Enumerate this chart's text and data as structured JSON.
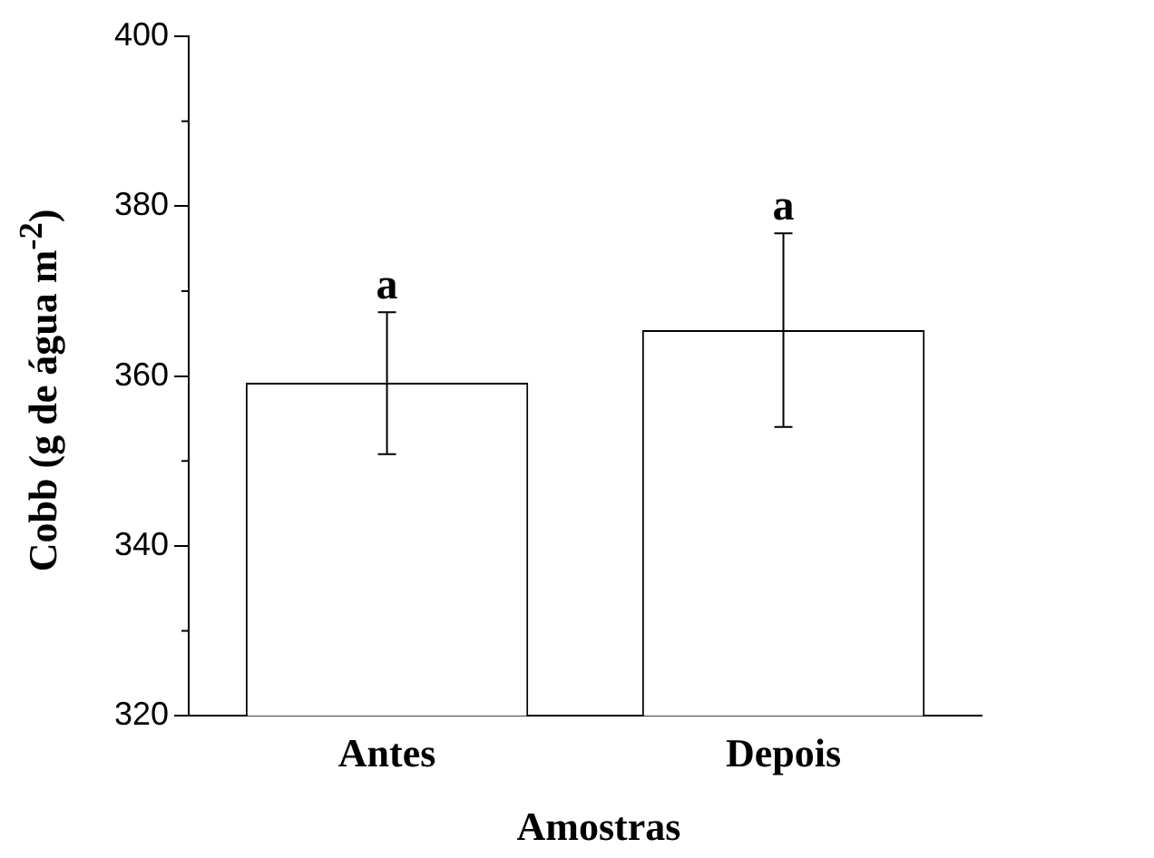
{
  "chart_data": {
    "type": "bar",
    "xlabel": "Amostras",
    "ylabel": "Cobb (g de água m$^{-2}$)",
    "categories": [
      "Antes",
      "Depois"
    ],
    "values": [
      359.2,
      365.4
    ],
    "errors": [
      [
        350.8,
        367.5
      ],
      [
        354,
        376.8
      ]
    ],
    "color": "#ffffff",
    "ylim": [
      320,
      400
    ],
    "yticks": [
      320,
      340,
      360,
      380,
      400
    ],
    "grid": false,
    "legend": false,
    "annotations": [
      {
        "text": "a",
        "x": "Antes",
        "y": 367.5
      },
      {
        "text": "a",
        "x": "Depois",
        "y": 376.8
      }
    ]
  }
}
